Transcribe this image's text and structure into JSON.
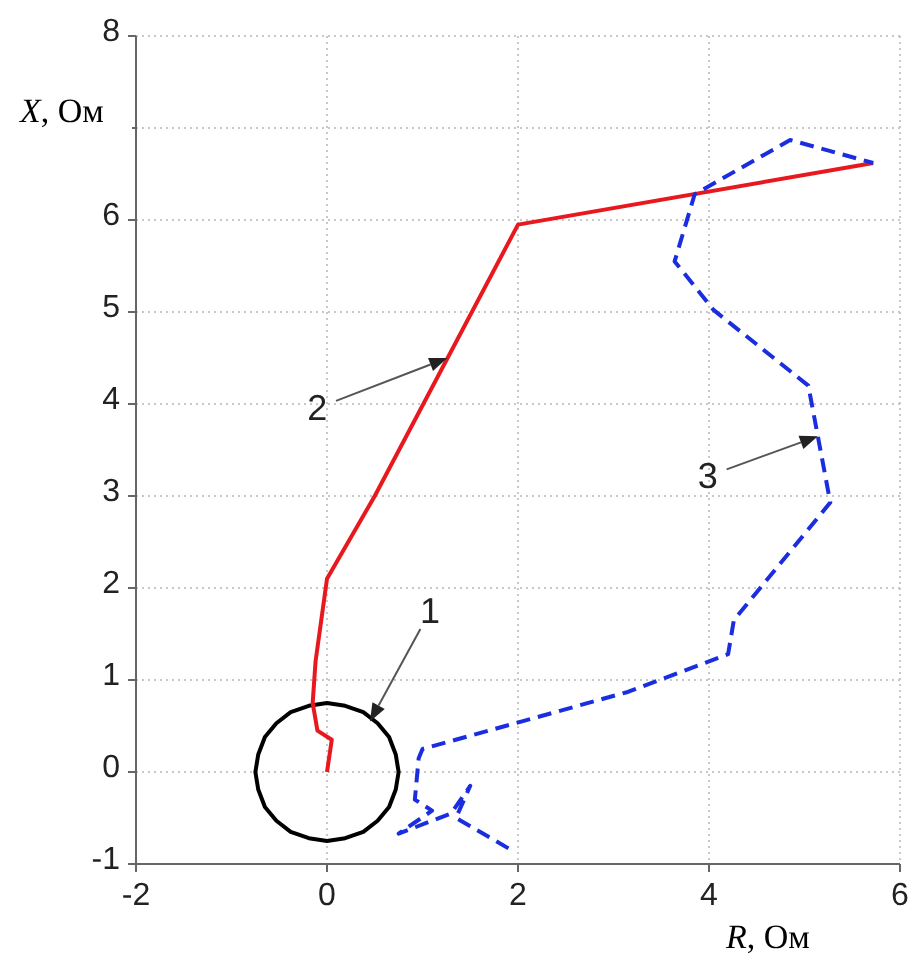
{
  "chart_data": {
    "type": "line",
    "xlabel": "R, Ом",
    "ylabel": "X, Ом",
    "xlim": [
      -2,
      6
    ],
    "xticks": [
      -2,
      0,
      2,
      4,
      6
    ],
    "ylim": [
      -1,
      8
    ],
    "yticks": [
      -1,
      0,
      1,
      2,
      3,
      4,
      5,
      6,
      {
        "value": 7,
        "label": null
      },
      8
    ],
    "grid": true,
    "marker": "none",
    "series": [
      {
        "color": "#000000",
        "line_style": "solid",
        "x": [
          0,
          0.19,
          0.38,
          0.53,
          0.65,
          0.72,
          0.75,
          0.72,
          0.65,
          0.53,
          0.38,
          0.19,
          0,
          -0.19,
          -0.38,
          -0.53,
          -0.65,
          -0.72,
          -0.75,
          -0.72,
          -0.65,
          -0.53,
          -0.38,
          -0.19,
          0,
          0.19
        ],
        "values": [
          0.75,
          0.72,
          0.65,
          0.53,
          0.38,
          0.19,
          0,
          -0.19,
          -0.38,
          -0.53,
          -0.65,
          -0.72,
          -0.75,
          -0.72,
          -0.65,
          -0.53,
          -0.38,
          -0.19,
          0,
          0.19,
          0.38,
          0.53,
          0.65,
          0.72,
          0.75,
          0.72
        ]
      },
      {
        "color": "#e8191e",
        "line_style": "solid",
        "x": [
          0,
          0.05,
          -0.1,
          -0.15,
          -0.12,
          0,
          0.5,
          2,
          5.72
        ],
        "values": [
          0,
          0.35,
          0.45,
          0.75,
          1.2,
          2.1,
          3,
          5.95,
          6.62
        ]
      },
      {
        "color": "#1a2ee0",
        "line_style": "dashed",
        "x": [
          1.9,
          1.35,
          1.5,
          1.3,
          0.75,
          1.1,
          0.92,
          0.96,
          1,
          3.15,
          4.2,
          4.26,
          5.27,
          5.04,
          4.05,
          3.64,
          3.85,
          4.85,
          5.72
        ],
        "values": [
          -0.83,
          -0.5,
          -0.15,
          -0.45,
          -0.67,
          -0.42,
          -0.3,
          0.15,
          0.25,
          0.87,
          1.28,
          1.65,
          2.93,
          4.2,
          5.02,
          5.55,
          6.28,
          6.87,
          6.62
        ]
      }
    ],
    "annotations": [
      {
        "text": "1",
        "x": 0.45,
        "y": 0.55
      },
      {
        "text": "2",
        "x": 1.26,
        "y": 4.5
      },
      {
        "text": "3",
        "x": 5.14,
        "y": 3.65
      }
    ]
  }
}
